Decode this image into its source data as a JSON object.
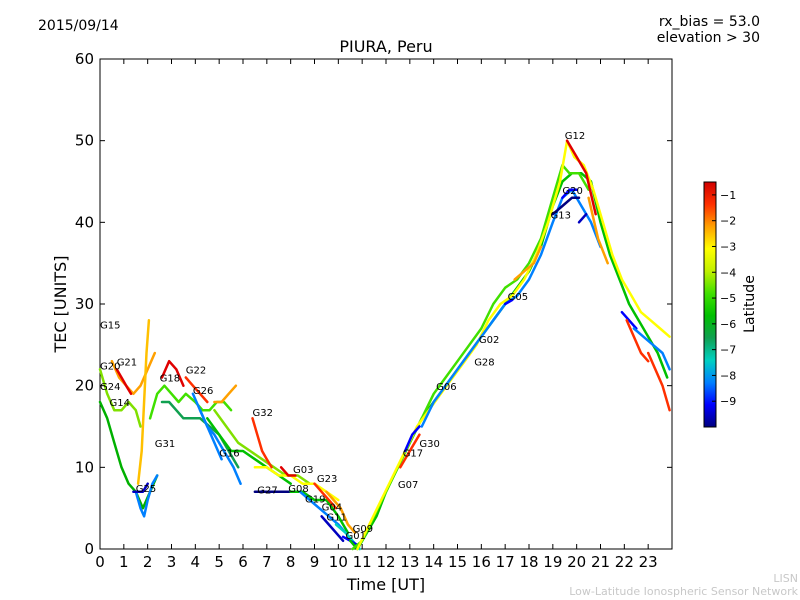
{
  "header": {
    "date": "2015/09/14",
    "bias_line1": "rx_bias = 53.0",
    "bias_line2": "elevation > 30"
  },
  "footer": {
    "line1": "LISN",
    "line2": "Low-Latitude Ionospheric Sensor Network"
  },
  "chart_data": {
    "type": "line",
    "title": "PIURA, Peru",
    "xlabel": "Time [UT]",
    "ylabel": "TEC [UNITS]",
    "xlim": [
      0,
      24
    ],
    "ylim": [
      0,
      60
    ],
    "xticks": [
      0,
      1,
      2,
      3,
      4,
      5,
      6,
      7,
      8,
      9,
      10,
      11,
      12,
      13,
      14,
      15,
      16,
      17,
      18,
      19,
      20,
      21,
      22,
      23
    ],
    "yticks": [
      0,
      10,
      20,
      30,
      40,
      50,
      60
    ],
    "grid": false,
    "colorbar": {
      "label": "Latitude",
      "range": [
        -10,
        -0.5
      ],
      "ticks": [
        -9,
        -8,
        -7,
        -6,
        -5,
        -4,
        -3,
        -2,
        -1
      ],
      "colormap": "jet-like",
      "stops": [
        "#00007f",
        "#0000ff",
        "#0080ff",
        "#00d0c0",
        "#10a050",
        "#00c000",
        "#40e000",
        "#c0f000",
        "#ffff00",
        "#ffa000",
        "#ff3000",
        "#d00000"
      ]
    },
    "series": [
      {
        "color": "#00b000",
        "x": [
          0,
          0.3,
          0.6,
          0.9,
          1.2,
          1.5,
          1.8,
          2.1,
          2.4
        ],
        "y": [
          18,
          16,
          13,
          10,
          8,
          7,
          5,
          7,
          9
        ]
      },
      {
        "color": "#80e000",
        "x": [
          0,
          0.3,
          0.6,
          0.9,
          1.2,
          1.5,
          1.7
        ],
        "y": [
          22,
          19,
          17,
          17,
          18,
          17,
          15
        ]
      },
      {
        "color": "#ffa000",
        "x": [
          0.5,
          0.8,
          1.1,
          1.4,
          1.7,
          2.0,
          2.3
        ],
        "y": [
          23,
          21,
          20,
          19,
          20,
          22,
          24
        ]
      },
      {
        "color": "#e00000",
        "x": [
          0.7,
          0.9,
          1.1,
          1.3
        ],
        "y": [
          22,
          21,
          20,
          19
        ]
      },
      {
        "color": "#ffc000",
        "x": [
          1.6,
          1.75,
          1.85,
          1.95,
          2.05
        ],
        "y": [
          8,
          12,
          18,
          24,
          28
        ]
      },
      {
        "color": "#0080ff",
        "x": [
          1.5,
          1.7,
          1.85,
          2.0,
          2.2,
          2.4
        ],
        "y": [
          7,
          5,
          4,
          6,
          8,
          9
        ]
      },
      {
        "color": "#0000c0",
        "x": [
          1.4,
          1.6,
          1.8,
          2.0
        ],
        "y": [
          7,
          7,
          7,
          8
        ]
      },
      {
        "color": "#40e000",
        "x": [
          2.1,
          2.4,
          2.7,
          3.0,
          3.3,
          3.6,
          4.0,
          4.3,
          4.6,
          4.9,
          5.2,
          5.5
        ],
        "y": [
          16,
          19,
          20,
          19,
          18,
          19,
          18,
          17,
          17,
          18,
          18,
          17
        ]
      },
      {
        "color": "#e00000",
        "x": [
          2.6,
          2.9,
          3.2,
          3.5
        ],
        "y": [
          21,
          23,
          22,
          20
        ]
      },
      {
        "color": "#ff3000",
        "x": [
          3.6,
          3.9,
          4.2,
          4.5
        ],
        "y": [
          21,
          20,
          19,
          18
        ]
      },
      {
        "color": "#10a050",
        "x": [
          2.6,
          2.9,
          3.2,
          3.5,
          3.8,
          4.2,
          4.6,
          5.0,
          5.4,
          5.8
        ],
        "y": [
          18,
          18,
          17,
          16,
          16,
          16,
          15,
          14,
          12,
          10
        ]
      },
      {
        "color": "#0080ff",
        "x": [
          3.9,
          4.2,
          4.5,
          4.8,
          5.1
        ],
        "y": [
          19,
          17,
          15,
          13,
          11
        ]
      },
      {
        "color": "#ffa000",
        "x": [
          4.8,
          5.1,
          5.4,
          5.7
        ],
        "y": [
          18,
          18,
          19,
          20
        ]
      },
      {
        "color": "#0080ff",
        "x": [
          4.2,
          4.5,
          4.8,
          5.2,
          5.6,
          5.9
        ],
        "y": [
          17,
          15,
          14,
          12,
          10,
          8
        ]
      },
      {
        "color": "#00c000",
        "x": [
          4.5,
          5.0,
          5.5,
          6.0,
          6.5,
          7.0,
          7.5,
          8.0
        ],
        "y": [
          16,
          14,
          12,
          12,
          11,
          10,
          9,
          8
        ]
      },
      {
        "color": "#80e000",
        "x": [
          4.8,
          5.3,
          5.8,
          6.3,
          6.8,
          7.3,
          7.8,
          8.3,
          8.8
        ],
        "y": [
          17,
          15,
          13,
          12,
          11,
          10,
          9,
          9,
          8
        ]
      },
      {
        "color": "#ff3000",
        "x": [
          6.4,
          6.6,
          6.8,
          7.0,
          7.2
        ],
        "y": [
          16,
          14,
          12,
          11,
          10
        ]
      },
      {
        "color": "#ffff00",
        "x": [
          6.5,
          7.0,
          7.5,
          8.0,
          8.5,
          9.0,
          9.5,
          10.0
        ],
        "y": [
          10,
          10,
          9,
          9,
          8,
          8,
          7,
          6
        ]
      },
      {
        "color": "#00007f",
        "x": [
          6.5,
          7.0,
          7.5,
          8.0
        ],
        "y": [
          7,
          7,
          7,
          7
        ]
      },
      {
        "color": "#e00000",
        "x": [
          7.6,
          7.9,
          8.2
        ],
        "y": [
          10,
          9,
          9
        ]
      },
      {
        "color": "#00c000",
        "x": [
          8.0,
          8.5,
          9.0,
          9.5,
          10.0,
          10.4
        ],
        "y": [
          7,
          7,
          6,
          6,
          4,
          2
        ]
      },
      {
        "color": "#0080ff",
        "x": [
          8.4,
          8.8,
          9.2,
          9.6,
          10.0,
          10.3
        ],
        "y": [
          7,
          6,
          5,
          4,
          3,
          2
        ]
      },
      {
        "color": "#ff3000",
        "x": [
          9.0,
          9.3,
          9.6,
          9.9
        ],
        "y": [
          8,
          7,
          6,
          5
        ]
      },
      {
        "color": "#ffa000",
        "x": [
          9.5,
          9.8,
          10.1,
          10.4,
          10.7
        ],
        "y": [
          7,
          6,
          5,
          3,
          2
        ]
      },
      {
        "color": "#0000c0",
        "x": [
          9.3,
          9.6,
          9.9,
          10.2
        ],
        "y": [
          4,
          3,
          2,
          1
        ]
      },
      {
        "color": "#00d0c0",
        "x": [
          9.9,
          10.3,
          10.6,
          10.9
        ],
        "y": [
          3,
          2,
          1,
          0
        ]
      },
      {
        "color": "#0000ff",
        "x": [
          10.2,
          10.5,
          10.8
        ],
        "y": [
          1.5,
          1,
          0.5
        ]
      },
      {
        "color": "#00c000",
        "x": [
          10.5,
          10.8,
          11.2,
          11.6,
          12.0,
          12.5,
          13.0,
          13.5,
          14.0,
          14.5,
          15.0,
          15.5,
          16.0,
          16.5,
          17.0,
          17.5,
          18.0,
          18.5,
          19.0,
          19.4,
          19.8,
          20.2,
          20.6,
          21.0,
          21.4,
          21.8,
          22.2,
          22.6,
          23.0,
          23.4,
          23.8
        ],
        "y": [
          1,
          0,
          2,
          4,
          7,
          10,
          13,
          16,
          18,
          20,
          22,
          24,
          26,
          28,
          30,
          32,
          34,
          37,
          42,
          45,
          46,
          46,
          45,
          40,
          36,
          33,
          30,
          28,
          26,
          24,
          21
        ]
      },
      {
        "color": "#40e000",
        "x": [
          10.6,
          11.0,
          11.5,
          12.0,
          12.5,
          13.0,
          13.5,
          14.0,
          14.5,
          15.0,
          15.5,
          16.0,
          16.5,
          17.0,
          17.5,
          18.0,
          18.5,
          19.0,
          19.4,
          19.7,
          20.1,
          20.5
        ],
        "y": [
          0,
          1,
          4,
          7,
          10,
          13,
          16,
          19,
          21,
          23,
          25,
          27,
          30,
          32,
          33,
          35,
          38,
          43,
          47,
          46,
          46,
          44
        ]
      },
      {
        "color": "#ffff00",
        "x": [
          10.8,
          11.3,
          11.8,
          12.3,
          12.8,
          13.3,
          13.8,
          14.3,
          14.8,
          15.3,
          15.8,
          16.3,
          16.8,
          17.3,
          17.8,
          18.3,
          18.8,
          19.3,
          19.6,
          19.9,
          20.3,
          20.7,
          21.1,
          21.5,
          21.9,
          22.3,
          22.7,
          23.1,
          23.5,
          23.9
        ],
        "y": [
          0,
          3,
          6,
          9,
          12,
          15,
          17,
          19,
          21,
          23,
          25,
          28,
          30,
          31,
          33,
          36,
          40,
          45,
          50,
          48,
          47,
          44,
          40,
          36,
          33,
          31,
          29,
          28,
          27,
          26
        ]
      },
      {
        "color": "#ff3000",
        "x": [
          12.6,
          13.0,
          13.4
        ],
        "y": [
          10,
          12,
          14
        ]
      },
      {
        "color": "#0000ff",
        "x": [
          12.8,
          13.1,
          13.4
        ],
        "y": [
          12,
          14,
          15
        ]
      },
      {
        "color": "#0080ff",
        "x": [
          13.5,
          14.0,
          14.5,
          15.0,
          15.5,
          16.0,
          16.5,
          17.0,
          17.5,
          18.0,
          18.5,
          19.0,
          19.4,
          19.8,
          20.2,
          20.6,
          21.0
        ],
        "y": [
          15,
          18,
          20,
          22,
          24,
          26,
          28,
          30,
          31,
          33,
          36,
          40,
          43,
          44,
          42,
          40,
          37
        ]
      },
      {
        "color": "#00007f",
        "x": [
          19.0,
          19.4,
          19.8,
          20.1
        ],
        "y": [
          41,
          42,
          43,
          43
        ]
      },
      {
        "color": "#ffa000",
        "x": [
          17.4,
          17.8,
          18.2,
          18.5
        ],
        "y": [
          33,
          34,
          35,
          37
        ]
      },
      {
        "color": "#0000ff",
        "x": [
          17.0,
          17.3
        ],
        "y": [
          30,
          30.5
        ]
      },
      {
        "color": "#0000ff",
        "x": [
          19.4,
          19.7,
          20.0
        ],
        "y": [
          43,
          44,
          44
        ]
      },
      {
        "color": "#0000c0",
        "x": [
          20.1,
          20.4
        ],
        "y": [
          40,
          41
        ]
      },
      {
        "color": "#e00000",
        "x": [
          19.6,
          20.0,
          20.4,
          20.8
        ],
        "y": [
          50,
          48,
          46,
          41
        ]
      },
      {
        "color": "#ffa000",
        "x": [
          20.5,
          20.9,
          21.3
        ],
        "y": [
          43,
          38,
          35
        ]
      },
      {
        "color": "#0000ff",
        "x": [
          21.9,
          22.2,
          22.5
        ],
        "y": [
          29,
          28,
          27
        ]
      },
      {
        "color": "#ff3000",
        "x": [
          22.1,
          22.4,
          22.7,
          23.0
        ],
        "y": [
          28,
          26,
          24,
          23
        ]
      },
      {
        "color": "#0080ff",
        "x": [
          22.4,
          22.8,
          23.2,
          23.6,
          23.9
        ],
        "y": [
          27,
          26,
          25,
          24,
          22
        ]
      },
      {
        "color": "#ff3000",
        "x": [
          23.0,
          23.3,
          23.6,
          23.9
        ],
        "y": [
          24,
          22,
          20,
          17
        ]
      }
    ],
    "labels": [
      {
        "text": "G15",
        "x": 0.0,
        "y": 27
      },
      {
        "text": "G20",
        "x": 0.0,
        "y": 22
      },
      {
        "text": "G21",
        "x": 0.7,
        "y": 22.5
      },
      {
        "text": "G24",
        "x": 0.0,
        "y": 19.5
      },
      {
        "text": "G14",
        "x": 0.4,
        "y": 17.5
      },
      {
        "text": "G18",
        "x": 2.5,
        "y": 20.5
      },
      {
        "text": "G22",
        "x": 3.6,
        "y": 21.5
      },
      {
        "text": "G26",
        "x": 3.9,
        "y": 19
      },
      {
        "text": "G31",
        "x": 2.3,
        "y": 12.5
      },
      {
        "text": "G25",
        "x": 1.5,
        "y": 7
      },
      {
        "text": "G16",
        "x": 5.0,
        "y": 11.3
      },
      {
        "text": "G32",
        "x": 6.4,
        "y": 16.3
      },
      {
        "text": "G27",
        "x": 6.6,
        "y": 6.8
      },
      {
        "text": "G03",
        "x": 8.1,
        "y": 9.3
      },
      {
        "text": "G08",
        "x": 7.9,
        "y": 7
      },
      {
        "text": "G23",
        "x": 9.1,
        "y": 8.2
      },
      {
        "text": "G19",
        "x": 8.6,
        "y": 5.7
      },
      {
        "text": "G04",
        "x": 9.3,
        "y": 4.7
      },
      {
        "text": "G11",
        "x": 9.5,
        "y": 3.5
      },
      {
        "text": "G09",
        "x": 10.6,
        "y": 2.1
      },
      {
        "text": "G01",
        "x": 10.3,
        "y": 1.2
      },
      {
        "text": "G07",
        "x": 12.5,
        "y": 7.5
      },
      {
        "text": "G17",
        "x": 12.7,
        "y": 11.3
      },
      {
        "text": "G30",
        "x": 13.4,
        "y": 12.5
      },
      {
        "text": "G06",
        "x": 14.1,
        "y": 19.5
      },
      {
        "text": "G28",
        "x": 15.7,
        "y": 22.5
      },
      {
        "text": "G02",
        "x": 15.9,
        "y": 25.2
      },
      {
        "text": "G05",
        "x": 17.1,
        "y": 30.5
      },
      {
        "text": "G13",
        "x": 18.9,
        "y": 40.5
      },
      {
        "text": "G20",
        "x": 19.4,
        "y": 43.5
      },
      {
        "text": "G12",
        "x": 19.5,
        "y": 50.2
      }
    ]
  }
}
